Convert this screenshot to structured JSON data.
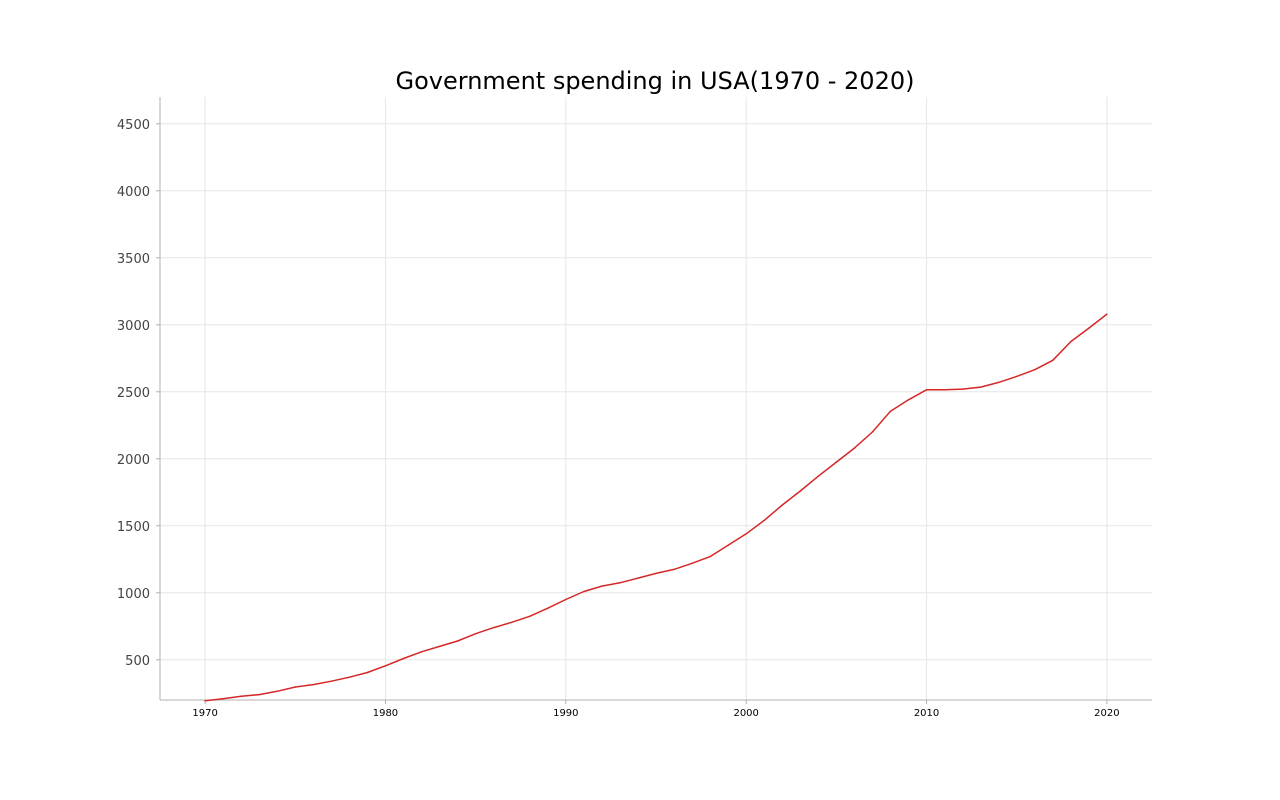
{
  "chart_data": {
    "type": "line",
    "title": "Government spending in USA(1970 - 2020)",
    "xlabel": "",
    "ylabel": "",
    "xlim": [
      1967.5,
      2022.5
    ],
    "ylim": [
      200,
      4700
    ],
    "x_ticks": [
      1970,
      1980,
      1990,
      2000,
      2010,
      2020
    ],
    "y_ticks": [
      500,
      1000,
      1500,
      2000,
      2500,
      3000,
      3500,
      4000,
      4500
    ],
    "grid": true,
    "line_color": "#d62728",
    "series": [
      {
        "x": [
          1970,
          1971,
          1972,
          1973,
          1974,
          1975,
          1976,
          1977,
          1978,
          1979,
          1980,
          1981,
          1982,
          1983,
          1984,
          1985,
          1986,
          1987,
          1988,
          1989,
          1990,
          1991,
          1992,
          1993,
          1994,
          1995,
          1996,
          1997,
          1998,
          1999,
          2000,
          2001,
          2002,
          2003,
          2004,
          2005,
          2006,
          2007,
          2008,
          2009,
          2010,
          2011,
          2012,
          2013,
          2014,
          2015,
          2016,
          2017,
          2018,
          2019,
          2020
        ],
        "values": [
          195,
          210,
          228,
          240,
          265,
          297,
          315,
          340,
          370,
          405,
          455,
          510,
          560,
          600,
          640,
          695,
          740,
          780,
          825,
          885,
          950,
          1010,
          1050,
          1075,
          1110,
          1145,
          1175,
          1220,
          1270,
          1355,
          1440,
          1540,
          1655,
          1760,
          1870,
          1975,
          2080,
          2200,
          2355,
          2440,
          2515,
          2515,
          2520,
          2535,
          2570,
          2615,
          2665,
          2735,
          2875,
          2975,
          3080
        ]
      }
    ]
  }
}
